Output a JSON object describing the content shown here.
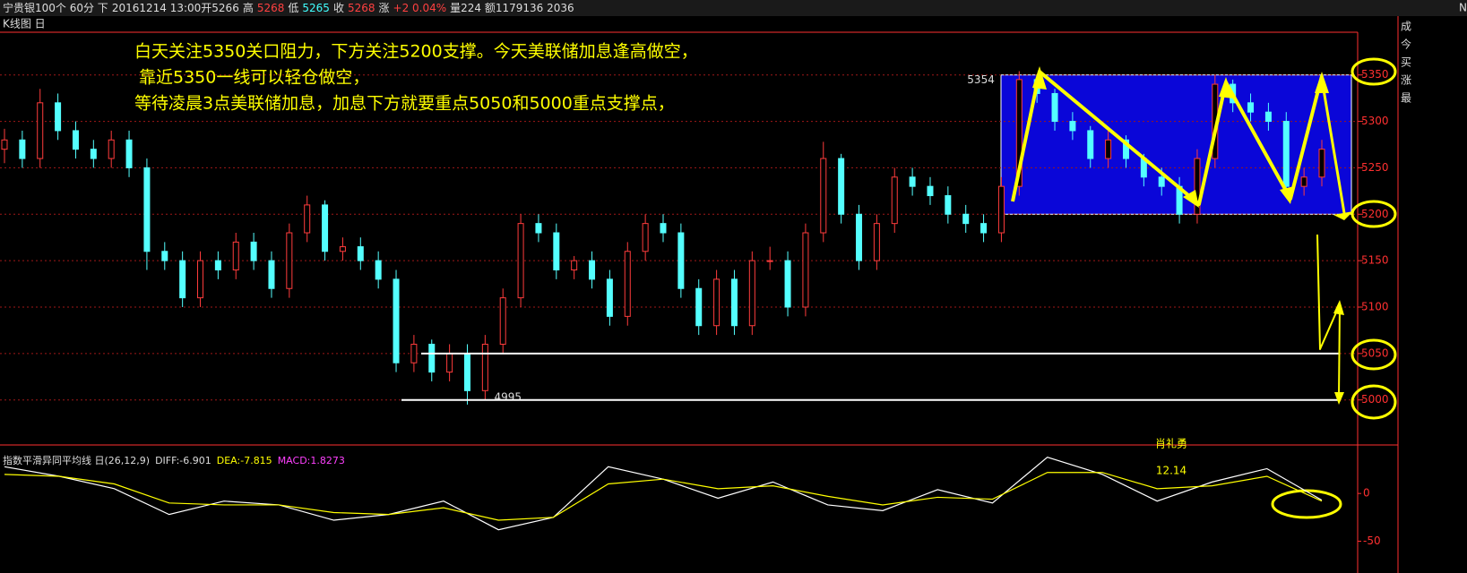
{
  "header": {
    "segments": [
      {
        "text": "宁贵银100个 60分 下",
        "color": "#dddddd"
      },
      {
        "text": "20161214 13:00开5266",
        "color": "#dddddd"
      },
      {
        "text": "高",
        "color": "#dddddd"
      },
      {
        "text": "5268",
        "color": "#ff4040"
      },
      {
        "text": "低",
        "color": "#dddddd"
      },
      {
        "text": "5265",
        "color": "#40ffff"
      },
      {
        "text": "收",
        "color": "#dddddd"
      },
      {
        "text": "5268",
        "color": "#ff4040"
      },
      {
        "text": "涨",
        "color": "#dddddd"
      },
      {
        "text": "+2 0.04%",
        "color": "#ff4040"
      },
      {
        "text": "量224 额1179136 2036",
        "color": "#dddddd"
      }
    ],
    "corner": "N"
  },
  "tab": "K线图 日",
  "side_labels": [
    "成",
    "今",
    "买",
    "涨",
    "最"
  ],
  "kline": {
    "ylim": [
      4965,
      5396
    ],
    "yticks": [
      5350,
      5300,
      5250,
      5200,
      5150,
      5100,
      5050,
      5000
    ],
    "up_color": "#ff3c3c",
    "down_color": "#54ffff",
    "open": [
      5270,
      5280,
      5260,
      5320,
      5290,
      5270,
      5260,
      5280,
      5250,
      5160,
      5150,
      5110,
      5150,
      5140,
      5170,
      5150,
      5120,
      5180,
      5210,
      5160,
      5165,
      5150,
      5130,
      5040,
      5060,
      5030,
      5050,
      5010,
      5060,
      5110,
      5190,
      5180,
      5140,
      5150,
      5130,
      5090,
      5160,
      5190,
      5180,
      5120,
      5080,
      5130,
      5080,
      5150,
      5150,
      5100,
      5180,
      5260,
      5200,
      5150,
      5190,
      5240,
      5230,
      5220,
      5200,
      5190,
      5180,
      5230,
      5345,
      5330,
      5300,
      5290,
      5260,
      5280,
      5260,
      5240,
      5230,
      5200,
      5260,
      5340,
      5320,
      5310,
      5300,
      5230,
      5240
    ],
    "high": [
      5292,
      5290,
      5335,
      5330,
      5300,
      5280,
      5290,
      5290,
      5260,
      5170,
      5160,
      5160,
      5160,
      5180,
      5180,
      5160,
      5190,
      5220,
      5215,
      5175,
      5175,
      5160,
      5140,
      5070,
      5065,
      5060,
      5060,
      5070,
      5120,
      5200,
      5200,
      5190,
      5155,
      5160,
      5140,
      5170,
      5200,
      5200,
      5190,
      5130,
      5140,
      5140,
      5160,
      5165,
      5160,
      5190,
      5278,
      5265,
      5210,
      5200,
      5250,
      5250,
      5240,
      5230,
      5210,
      5200,
      5240,
      5354,
      5350,
      5335,
      5310,
      5295,
      5290,
      5285,
      5265,
      5250,
      5240,
      5270,
      5350,
      5345,
      5330,
      5320,
      5310,
      5250,
      5280
    ],
    "low": [
      5255,
      5250,
      5250,
      5280,
      5260,
      5250,
      5250,
      5240,
      5140,
      5140,
      5100,
      5100,
      5130,
      5130,
      5140,
      5110,
      5110,
      5170,
      5150,
      5150,
      5140,
      5120,
      5030,
      5030,
      5020,
      5020,
      4995,
      5000,
      5050,
      5100,
      5170,
      5130,
      5130,
      5120,
      5080,
      5080,
      5150,
      5170,
      5110,
      5070,
      5070,
      5070,
      5070,
      5140,
      5090,
      5090,
      5170,
      5190,
      5140,
      5140,
      5180,
      5220,
      5210,
      5190,
      5180,
      5170,
      5170,
      5220,
      5320,
      5290,
      5280,
      5250,
      5250,
      5250,
      5230,
      5220,
      5190,
      5190,
      5250,
      5310,
      5300,
      5290,
      5220,
      5220,
      5230
    ],
    "close": [
      5280,
      5260,
      5320,
      5290,
      5270,
      5260,
      5280,
      5250,
      5160,
      5150,
      5110,
      5150,
      5140,
      5170,
      5150,
      5120,
      5180,
      5210,
      5160,
      5165,
      5150,
      5130,
      5040,
      5060,
      5030,
      5050,
      5010,
      5060,
      5110,
      5190,
      5180,
      5140,
      5150,
      5130,
      5090,
      5160,
      5190,
      5180,
      5120,
      5080,
      5130,
      5080,
      5150,
      5150,
      5100,
      5180,
      5260,
      5200,
      5150,
      5190,
      5240,
      5230,
      5220,
      5200,
      5190,
      5180,
      5230,
      5345,
      5330,
      5300,
      5290,
      5260,
      5280,
      5260,
      5240,
      5230,
      5200,
      5260,
      5340,
      5320,
      5310,
      5300,
      5230,
      5240,
      5270
    ],
    "high_label": "5354",
    "low_label": "4995"
  },
  "notes": [
    "白天关注5350关口阻力，下方关注5200支撑。今天美联储加息逢高做空，",
    "靠近5350一线可以轻仓做空，",
    "等待凌晨3点美联储加息，加息下方就要重点5050和5000重点支撑点，"
  ],
  "author": "肖礼勇",
  "date": "12.14",
  "macd": {
    "name": "指数平滑异同平均线 日(26,12,9)",
    "diff_label": "DIFF:-6.901",
    "dea_label": "DEA:-7.815",
    "macd_label": "MACD:1.8273",
    "ylim": [
      -58,
      48
    ],
    "yticks": [
      0,
      -50
    ],
    "diff": [
      28,
      18,
      5,
      -22,
      -8,
      -12,
      -28,
      -22,
      -8,
      -38,
      -25,
      28,
      15,
      -5,
      12,
      -12,
      -18,
      4,
      -10,
      38,
      20,
      -8,
      12,
      26,
      -7
    ],
    "dea": [
      20,
      18,
      10,
      -10,
      -12,
      -12,
      -20,
      -22,
      -15,
      -28,
      -25,
      10,
      15,
      5,
      8,
      -3,
      -12,
      -4,
      -6,
      22,
      22,
      5,
      8,
      18,
      -8
    ],
    "diff_color": "#ffffff",
    "dea_color": "#ffff00"
  }
}
